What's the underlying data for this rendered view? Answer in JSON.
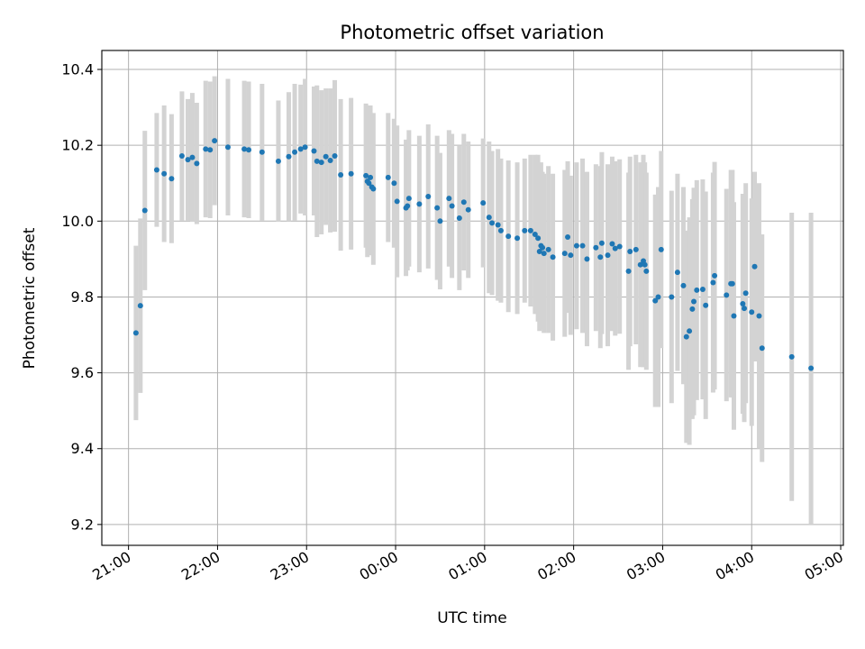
{
  "chart_data": {
    "type": "scatter",
    "title": "Photometric offset variation",
    "xlabel": "UTC time",
    "ylabel": "Photometric offset",
    "x_ticks": [
      "21:00",
      "22:00",
      "23:00",
      "00:00",
      "01:00",
      "02:00",
      "03:00",
      "04:00",
      "05:00"
    ],
    "y_ticks": [
      "9.2",
      "9.4",
      "9.6",
      "9.8",
      "10.0",
      "10.2",
      "10.4"
    ],
    "xlim_hours": [
      20.7,
      29.03
    ],
    "ylim": [
      9.145,
      10.45
    ],
    "grid": true,
    "errorbar_color": "#d3d3d3",
    "point_color": "#1f77b4",
    "series": [
      {
        "x": [
          "21:05",
          "21:08",
          "21:11",
          "21:19",
          "21:24",
          "21:29",
          "21:36",
          "21:40",
          "21:43",
          "21:46",
          "21:52",
          "21:55",
          "21:58",
          "22:07",
          "22:18",
          "22:21",
          "22:30",
          "22:41",
          "22:48",
          "22:52",
          "22:56",
          "22:59",
          "23:05",
          "23:07",
          "23:10",
          "23:13",
          "23:16",
          "23:19",
          "23:23",
          "23:30",
          "23:40",
          "23:41",
          "23:42",
          "23:43",
          "23:44",
          "23:45",
          "23:55",
          "23:59",
          "00:01",
          "00:07",
          "00:08",
          "00:09",
          "00:16",
          "00:22",
          "00:28",
          "00:30",
          "00:36",
          "00:38",
          "00:43",
          "00:46",
          "00:49",
          "00:59",
          "01:03",
          "01:05",
          "01:09",
          "01:11",
          "01:16",
          "01:22",
          "01:27",
          "01:31",
          "01:34",
          "01:36",
          "01:37",
          "01:38",
          "01:39",
          "01:40",
          "01:43",
          "01:46",
          "01:54",
          "01:56",
          "01:58",
          "02:02",
          "02:06",
          "02:09",
          "02:15",
          "02:18",
          "02:19",
          "02:23",
          "02:26",
          "02:28",
          "02:31",
          "02:37",
          "02:38",
          "02:42",
          "02:45",
          "02:47",
          "02:48",
          "02:49",
          "02:55",
          "02:57",
          "02:59",
          "03:06",
          "03:10",
          "03:14",
          "03:16",
          "03:18",
          "03:20",
          "03:21",
          "03:23",
          "03:27",
          "03:29",
          "03:34",
          "03:35",
          "03:43",
          "03:46",
          "03:47",
          "03:48",
          "03:54",
          "03:55",
          "03:56",
          "04:00",
          "04:02",
          "04:05",
          "04:07",
          "04:27",
          "04:40"
        ],
        "y": [
          9.705,
          9.777,
          10.028,
          10.135,
          10.125,
          10.112,
          10.172,
          10.162,
          10.168,
          10.152,
          10.19,
          10.188,
          10.212,
          10.195,
          10.19,
          10.188,
          10.182,
          10.158,
          10.17,
          10.182,
          10.19,
          10.195,
          10.185,
          10.158,
          10.155,
          10.17,
          10.16,
          10.172,
          10.122,
          10.125,
          10.12,
          10.105,
          10.1,
          10.115,
          10.09,
          10.085,
          10.115,
          10.1,
          10.052,
          10.035,
          10.04,
          10.06,
          10.045,
          10.065,
          10.035,
          10.0,
          10.06,
          10.04,
          10.008,
          10.05,
          10.03,
          10.048,
          10.01,
          9.995,
          9.99,
          9.975,
          9.96,
          9.955,
          9.975,
          9.975,
          9.965,
          9.955,
          9.92,
          9.935,
          9.93,
          9.915,
          9.925,
          9.905,
          9.915,
          9.958,
          9.91,
          9.935,
          9.935,
          9.9,
          9.93,
          9.905,
          9.942,
          9.91,
          9.94,
          9.928,
          9.933,
          9.868,
          9.92,
          9.925,
          9.885,
          9.895,
          9.885,
          9.868,
          9.79,
          9.8,
          9.925,
          9.8,
          9.865,
          9.83,
          9.695,
          9.71,
          9.768,
          9.788,
          9.818,
          9.82,
          9.778,
          9.838,
          9.856,
          9.805,
          9.835,
          9.835,
          9.75,
          9.782,
          9.77,
          9.81,
          9.76,
          9.88,
          9.75,
          9.665,
          9.642,
          9.612
        ],
        "err": [
          0.23,
          0.23,
          0.21,
          0.15,
          0.18,
          0.17,
          0.17,
          0.16,
          0.17,
          0.16,
          0.18,
          0.18,
          0.17,
          0.18,
          0.18,
          0.18,
          0.18,
          0.16,
          0.17,
          0.18,
          0.17,
          0.18,
          0.17,
          0.2,
          0.19,
          0.18,
          0.19,
          0.2,
          0.2,
          0.2,
          0.19,
          0.2,
          0.19,
          0.19,
          0.18,
          0.2,
          0.17,
          0.17,
          0.2,
          0.18,
          0.17,
          0.18,
          0.18,
          0.19,
          0.19,
          0.18,
          0.18,
          0.19,
          0.19,
          0.18,
          0.18,
          0.17,
          0.2,
          0.19,
          0.2,
          0.19,
          0.2,
          0.2,
          0.19,
          0.2,
          0.21,
          0.22,
          0.21,
          0.22,
          0.2,
          0.21,
          0.22,
          0.22,
          0.22,
          0.2,
          0.21,
          0.22,
          0.23,
          0.23,
          0.22,
          0.24,
          0.24,
          0.24,
          0.23,
          0.23,
          0.23,
          0.26,
          0.25,
          0.25,
          0.27,
          0.28,
          0.27,
          0.26,
          0.28,
          0.29,
          0.26,
          0.28,
          0.26,
          0.26,
          0.28,
          0.3,
          0.29,
          0.3,
          0.29,
          0.29,
          0.3,
          0.29,
          0.3,
          0.28,
          0.3,
          0.3,
          0.3,
          0.29,
          0.3,
          0.29,
          0.3,
          0.25,
          0.35,
          0.3,
          0.38,
          0.41
        ]
      }
    ]
  }
}
